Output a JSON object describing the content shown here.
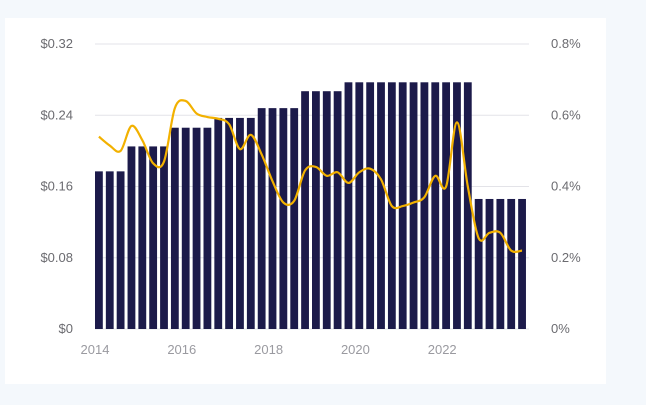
{
  "chart_data": {
    "type": "bar",
    "title": "",
    "xlabel": "",
    "ylabel": "",
    "colors": {
      "bar": "#1c1a4a",
      "line": "#f2b100",
      "grid": "#e3e3e8"
    },
    "grid": true,
    "legend": "none",
    "y_left": {
      "ylim": [
        0,
        0.32
      ],
      "ticks": [
        0,
        0.08,
        0.16,
        0.24,
        0.32
      ],
      "tick_labels": [
        "$0",
        "$0.08",
        "$0.16",
        "$0.24",
        "$0.32"
      ]
    },
    "y_right": {
      "ylim": [
        0,
        0.8
      ],
      "ticks": [
        0,
        0.2,
        0.4,
        0.6,
        0.8
      ],
      "tick_labels": [
        "0%",
        "0.2%",
        "0.4%",
        "0.6%",
        "0.8%"
      ]
    },
    "x_axis": {
      "range": [
        2014,
        2024
      ],
      "tick_labels": [
        "2014",
        "2016",
        "2018",
        "2020",
        "2022"
      ],
      "tick_values": [
        2014,
        2016,
        2018,
        2020,
        2022
      ]
    },
    "bars": {
      "axis": "left",
      "x": [
        2014.0,
        2014.25,
        2014.5,
        2014.75,
        2015.0,
        2015.25,
        2015.5,
        2015.75,
        2016.0,
        2016.25,
        2016.5,
        2016.75,
        2017.0,
        2017.25,
        2017.5,
        2017.75,
        2018.0,
        2018.25,
        2018.5,
        2018.75,
        2019.0,
        2019.25,
        2019.5,
        2019.75,
        2020.0,
        2020.25,
        2020.5,
        2020.75,
        2021.0,
        2021.25,
        2021.5,
        2021.75,
        2022.0,
        2022.25,
        2022.5,
        2022.75,
        2023.0,
        2023.25,
        2023.5,
        2023.75
      ],
      "values": [
        0.177,
        0.177,
        0.177,
        0.205,
        0.205,
        0.205,
        0.205,
        0.226,
        0.226,
        0.226,
        0.226,
        0.237,
        0.237,
        0.237,
        0.237,
        0.248,
        0.248,
        0.248,
        0.248,
        0.267,
        0.267,
        0.267,
        0.267,
        0.277,
        0.277,
        0.277,
        0.277,
        0.277,
        0.277,
        0.277,
        0.277,
        0.277,
        0.277,
        0.277,
        0.277,
        0.146,
        0.146,
        0.146,
        0.146,
        0.146
      ]
    },
    "line": {
      "axis": "right",
      "x": [
        2014.0,
        2014.25,
        2014.5,
        2014.75,
        2015.0,
        2015.25,
        2015.5,
        2015.75,
        2016.0,
        2016.25,
        2016.5,
        2016.75,
        2017.0,
        2017.25,
        2017.5,
        2017.75,
        2018.0,
        2018.25,
        2018.5,
        2018.75,
        2019.0,
        2019.25,
        2019.5,
        2019.75,
        2020.0,
        2020.25,
        2020.5,
        2020.75,
        2021.0,
        2021.25,
        2021.5,
        2021.75,
        2022.0,
        2022.25,
        2022.5,
        2022.75,
        2023.0,
        2023.25,
        2023.5,
        2023.75
      ],
      "values": [
        0.54,
        0.515,
        0.5,
        0.57,
        0.53,
        0.465,
        0.47,
        0.62,
        0.64,
        0.605,
        0.595,
        0.59,
        0.575,
        0.505,
        0.545,
        0.49,
        0.415,
        0.355,
        0.36,
        0.445,
        0.455,
        0.43,
        0.44,
        0.41,
        0.44,
        0.45,
        0.42,
        0.345,
        0.345,
        0.355,
        0.37,
        0.43,
        0.4,
        0.58,
        0.4,
        0.255,
        0.27,
        0.27,
        0.22,
        0.22
      ]
    }
  }
}
